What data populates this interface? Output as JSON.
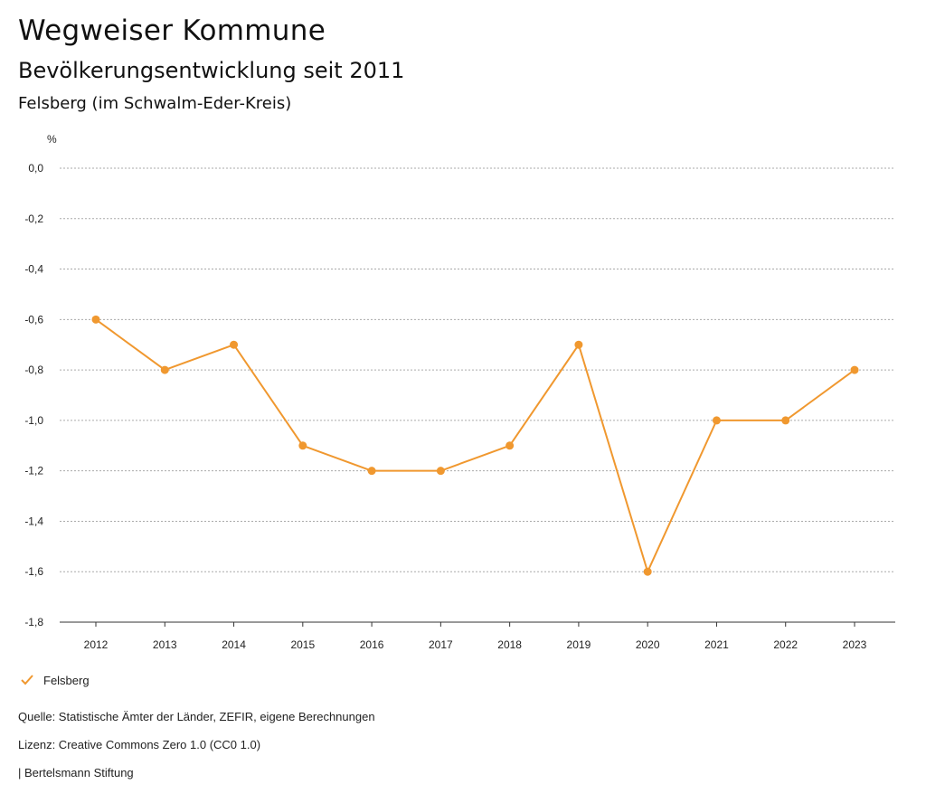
{
  "header": {
    "title": "Wegweiser Kommune",
    "subtitle": "Bevölkerungsentwicklung seit 2011",
    "region": "Felsberg (im Schwalm-Eder-Kreis)"
  },
  "colors": {
    "series": "#f0982f",
    "grid": "#aaaaaa",
    "axis": "#333333"
  },
  "chart_data": {
    "type": "line",
    "title": "Bevölkerungsentwicklung seit 2011",
    "ylabel": "%",
    "xlabel": "",
    "ylim": [
      -1.8,
      0.0
    ],
    "yticks": [
      0.0,
      -0.2,
      -0.4,
      -0.6,
      -0.8,
      -1.0,
      -1.2,
      -1.4,
      -1.6,
      -1.8
    ],
    "ytick_labels": [
      "0,0",
      "-0,2",
      "-0,4",
      "-0,6",
      "-0,8",
      "-1,0",
      "-1,2",
      "-1,4",
      "-1,6",
      "-1,8"
    ],
    "grid": true,
    "categories": [
      "2012",
      "2013",
      "2014",
      "2015",
      "2016",
      "2017",
      "2018",
      "2019",
      "2020",
      "2021",
      "2022",
      "2023"
    ],
    "series": [
      {
        "name": "Felsberg",
        "values": [
          -0.6,
          -0.8,
          -0.7,
          -1.1,
          -1.2,
          -1.2,
          -1.1,
          -0.7,
          -1.6,
          -1.0,
          -1.0,
          -0.8
        ]
      }
    ],
    "legend": "bottom-left"
  },
  "footer": {
    "source": "Quelle: Statistische Ämter der Länder, ZEFIR, eigene Berechnungen",
    "license": "Lizenz: Creative Commons Zero 1.0 (CC0 1.0)",
    "brand": "| Bertelsmann Stiftung"
  }
}
